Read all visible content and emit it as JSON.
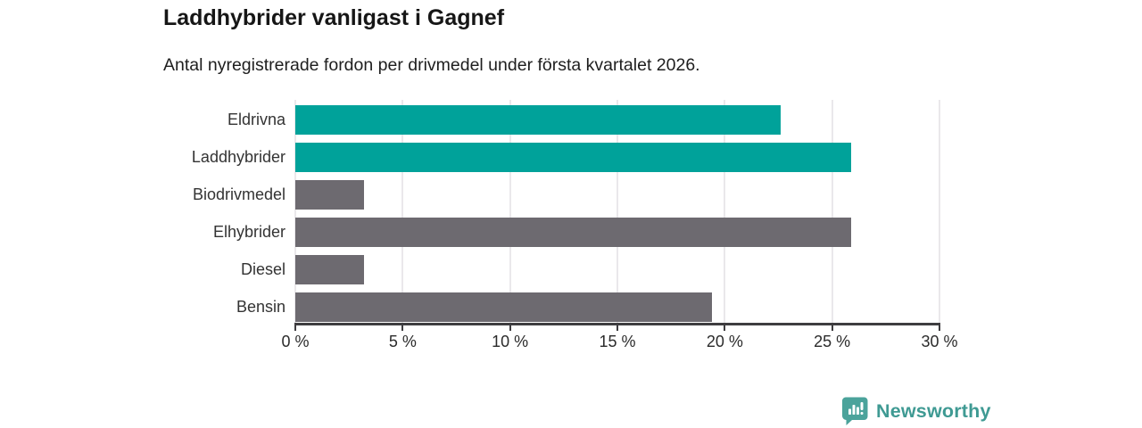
{
  "title": "Laddhybrider vanligast i Gagnef",
  "subtitle": "Antal nyregistrerade fordon per drivmedel under första kvartalet 2026.",
  "chart_data": {
    "type": "bar",
    "orientation": "horizontal",
    "title": "Laddhybrider vanligast i Gagnef",
    "subtitle": "Antal nyregistrerade fordon per drivmedel under första kvartalet 2026.",
    "categories": [
      "Eldrivna",
      "Laddhybrider",
      "Biodrivmedel",
      "Elhybrider",
      "Diesel",
      "Bensin"
    ],
    "values": [
      22.6,
      25.9,
      3.2,
      25.9,
      3.2,
      19.4
    ],
    "unit": "%",
    "bar_colors": [
      "#00a29a",
      "#00a29a",
      "#6d6a70",
      "#6d6a70",
      "#6d6a70",
      "#6d6a70"
    ],
    "highlight_color": "#00a29a",
    "neutral_color": "#6d6a70",
    "xlim": [
      0,
      30
    ],
    "x_tick_values": [
      0,
      5,
      10,
      15,
      20,
      25,
      30
    ],
    "x_tick_labels": [
      "0 %",
      "5 %",
      "10 %",
      "15 %",
      "20 %",
      "25 %",
      "30 %"
    ],
    "grid": "vertical-gridlines",
    "gridline_color": "#eae8eb",
    "axis_color": "#3e3d40",
    "legend": "none"
  },
  "footer": {
    "brand": "Newsworthy",
    "brand_color": "#3f9a93",
    "logo_icon": "newsworthy-bar-chart-bubble-icon",
    "logo_color": "#4ba39b"
  }
}
